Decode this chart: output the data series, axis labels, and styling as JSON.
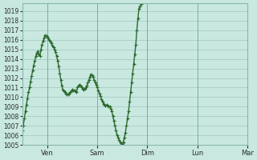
{
  "background_color": "#c8e8e0",
  "line_color": "#2d6a2d",
  "markersize": 3,
  "linewidth": 1.0,
  "grid_color": "#a0c8c0",
  "tick_label_color": "#2d2d2d",
  "ylim": [
    1005,
    1019.8
  ],
  "yticks": [
    1005,
    1006,
    1007,
    1008,
    1009,
    1010,
    1011,
    1012,
    1013,
    1014,
    1015,
    1016,
    1017,
    1018,
    1019
  ],
  "xtick_labels": [
    "Ven",
    "Sam",
    "Dim",
    "Lun",
    "Mar"
  ],
  "xtick_positions": [
    24,
    72,
    120,
    168,
    216
  ],
  "y_data": [
    1006.5,
    1007.0,
    1007.8,
    1008.5,
    1009.2,
    1009.9,
    1010.5,
    1011.0,
    1011.6,
    1012.2,
    1012.8,
    1013.3,
    1013.8,
    1014.3,
    1014.6,
    1014.8,
    1014.5,
    1014.3,
    1015.0,
    1015.5,
    1015.9,
    1016.2,
    1016.5,
    1016.4,
    1016.3,
    1016.1,
    1016.0,
    1015.8,
    1015.6,
    1015.4,
    1015.2,
    1015.0,
    1014.7,
    1014.3,
    1013.8,
    1013.2,
    1012.5,
    1011.8,
    1011.2,
    1010.8,
    1010.6,
    1010.5,
    1010.4,
    1010.3,
    1010.3,
    1010.4,
    1010.5,
    1010.6,
    1010.8,
    1010.7,
    1010.7,
    1010.6,
    1010.5,
    1011.0,
    1011.2,
    1011.3,
    1011.2,
    1011.0,
    1010.9,
    1010.8,
    1010.9,
    1011.0,
    1011.2,
    1011.5,
    1011.8,
    1012.1,
    1012.4,
    1012.3,
    1012.1,
    1011.8,
    1011.5,
    1011.3,
    1011.0,
    1010.7,
    1010.4,
    1010.1,
    1009.8,
    1009.5,
    1009.3,
    1009.2,
    1009.1,
    1009.2,
    1009.1,
    1009.0,
    1009.0,
    1008.8,
    1008.5,
    1008.0,
    1007.5,
    1007.0,
    1006.5,
    1006.0,
    1005.8,
    1005.5,
    1005.3,
    1005.2,
    1005.1,
    1005.3,
    1005.8,
    1006.3,
    1007.0,
    1007.8,
    1008.5,
    1009.5,
    1010.5,
    1011.5,
    1012.5,
    1013.5,
    1014.5,
    1015.5,
    1017.0,
    1018.2,
    1019.2,
    1019.5,
    1019.7
  ]
}
